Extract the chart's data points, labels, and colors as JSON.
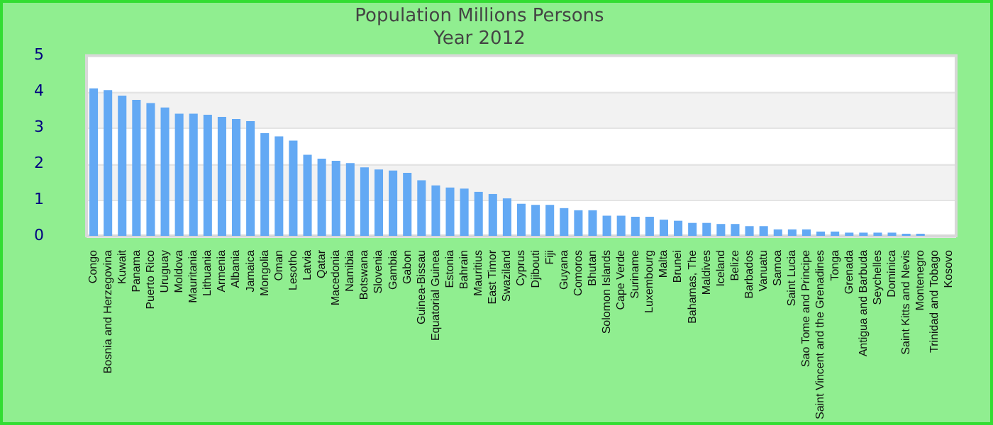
{
  "chart_data": {
    "type": "bar",
    "title": "Population Millions Persons",
    "subtitle": "Year 2012",
    "categories": [
      "Congo",
      "Bosnia and Herzegovina",
      "Kuwait",
      "Panama",
      "Puerto Rico",
      "Uruguay",
      "Moldova",
      "Mauritania",
      "Lithuania",
      "Armenia",
      "Albania",
      "Jamaica",
      "Mongolia",
      "Oman",
      "Lesotho",
      "Latvia",
      "Qatar",
      "Macedonia",
      "Namibia",
      "Botswana",
      "Slovenia",
      "Gambia",
      "Gabon",
      "Guinea-Bissau",
      "Equatorial Guinea",
      "Estonia",
      "Bahrain",
      "Mauritius",
      "East Timor",
      "Swaziland",
      "Cyprus",
      "Djibouti",
      "Fiji",
      "Guyana",
      "Comoros",
      "Bhutan",
      "Solomon Islands",
      "Cape Verde",
      "Suriname",
      "Luxembourg",
      "Malta",
      "Brunei",
      "Bahamas, The",
      "Maldives",
      "Iceland",
      "Belize",
      "Barbados",
      "Vanuatu",
      "Samoa",
      "Saint Lucia",
      "Sao Tome and Principe",
      "Saint Vincent and the Grenadines",
      "Tonga",
      "Grenada",
      "Antigua and Barbuda",
      "Seychelles",
      "Dominica",
      "Saint Kitts and Nevis",
      "Montenegro",
      "Trinidad and Tobago",
      "Kosovo"
    ],
    "values": [
      4.09,
      4.04,
      3.89,
      3.77,
      3.68,
      3.56,
      3.39,
      3.39,
      3.36,
      3.3,
      3.24,
      3.18,
      2.85,
      2.76,
      2.64,
      2.25,
      2.14,
      2.08,
      2.02,
      1.9,
      1.84,
      1.81,
      1.75,
      1.54,
      1.4,
      1.34,
      1.31,
      1.22,
      1.16,
      1.04,
      0.89,
      0.86,
      0.86,
      0.77,
      0.71,
      0.71,
      0.56,
      0.56,
      0.53,
      0.53,
      0.45,
      0.42,
      0.36,
      0.36,
      0.33,
      0.33,
      0.27,
      0.27,
      0.18,
      0.18,
      0.18,
      0.12,
      0.12,
      0.09,
      0.09,
      0.09,
      0.09,
      0.06,
      0.06,
      null,
      null
    ],
    "color": "#63a9f4",
    "ylim": [
      0,
      5
    ],
    "yticks": [
      0,
      1,
      2,
      3,
      4,
      5
    ],
    "grid": true
  }
}
